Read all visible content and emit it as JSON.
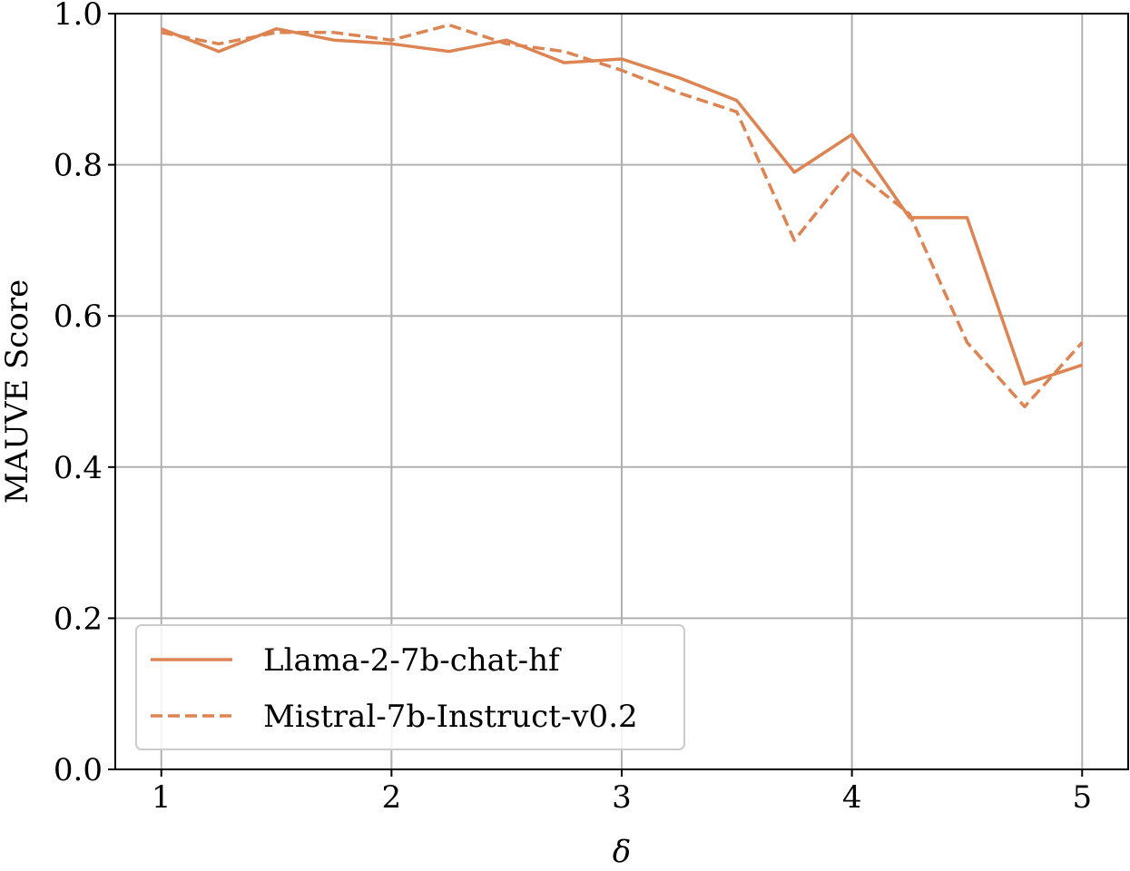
{
  "chart_data": {
    "type": "line",
    "xlabel": "δ",
    "ylabel": "MAUVE Score",
    "xlim": [
      0.8,
      5.2
    ],
    "ylim": [
      0.0,
      1.0
    ],
    "xticks": [
      1,
      2,
      3,
      4,
      5
    ],
    "yticks": [
      0.0,
      0.2,
      0.4,
      0.6,
      0.8,
      1.0
    ],
    "xtick_labels": [
      "1",
      "2",
      "3",
      "4",
      "5"
    ],
    "ytick_labels": [
      "0.0",
      "0.2",
      "0.4",
      "0.6",
      "0.8",
      "1.0"
    ],
    "grid": true,
    "legend_position": "lower-left",
    "x": [
      1.0,
      1.25,
      1.5,
      1.75,
      2.0,
      2.25,
      2.5,
      2.75,
      3.0,
      3.25,
      3.5,
      3.75,
      4.0,
      4.25,
      4.5,
      4.75,
      5.0
    ],
    "series": [
      {
        "name": "Llama-2-7b-chat-hf",
        "style": "solid",
        "color": "#dd8452",
        "values": [
          0.98,
          0.95,
          0.98,
          0.965,
          0.96,
          0.95,
          0.965,
          0.935,
          0.94,
          0.915,
          0.885,
          0.79,
          0.84,
          0.73,
          0.73,
          0.51,
          0.535
        ]
      },
      {
        "name": "Mistral-7b-Instruct-v0.2",
        "style": "dashed",
        "color": "#dd8452",
        "values": [
          0.975,
          0.96,
          0.975,
          0.975,
          0.965,
          0.985,
          0.96,
          0.95,
          0.925,
          0.895,
          0.87,
          0.7,
          0.795,
          0.735,
          0.565,
          0.48,
          0.565
        ]
      }
    ]
  }
}
